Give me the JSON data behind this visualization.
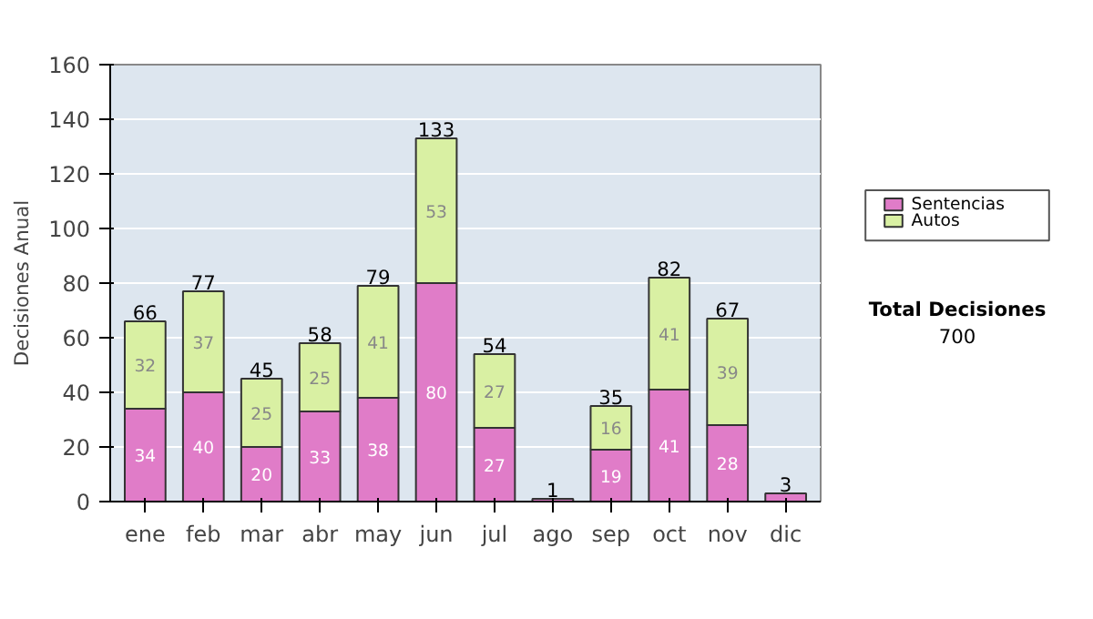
{
  "chart_data": {
    "type": "bar",
    "stacked": true,
    "ylabel": "Decisiones Anual",
    "categories": [
      "ene",
      "feb",
      "mar",
      "abr",
      "may",
      "jun",
      "jul",
      "ago",
      "sep",
      "oct",
      "nov",
      "dic"
    ],
    "series": [
      {
        "name": "Sentencias",
        "color": "#e07cc8",
        "values": [
          34,
          40,
          20,
          33,
          38,
          80,
          27,
          1,
          19,
          41,
          28,
          3
        ],
        "value_labels": [
          "34",
          "40",
          "20",
          "33",
          "38",
          "80",
          "27",
          null,
          "19",
          "41",
          "28",
          null
        ]
      },
      {
        "name": "Autos",
        "color": "#d9f0a3",
        "values": [
          32,
          37,
          25,
          25,
          41,
          53,
          27,
          null,
          16,
          41,
          39,
          null
        ],
        "value_labels": [
          "32",
          "37",
          "25",
          "25",
          "41",
          "53",
          "27",
          null,
          "16",
          "41",
          "39",
          null
        ]
      }
    ],
    "totals": [
      "66",
      "77",
      "45",
      "58",
      "79",
      "133",
      "54",
      "1",
      "35",
      "82",
      "67",
      "3"
    ],
    "ylim": [
      0,
      160
    ],
    "yticks": [
      0,
      20,
      40,
      60,
      80,
      100,
      120,
      140,
      160
    ],
    "grid": "y",
    "legend": "right",
    "annotations": [
      "Total Decisiones",
      "700"
    ]
  }
}
